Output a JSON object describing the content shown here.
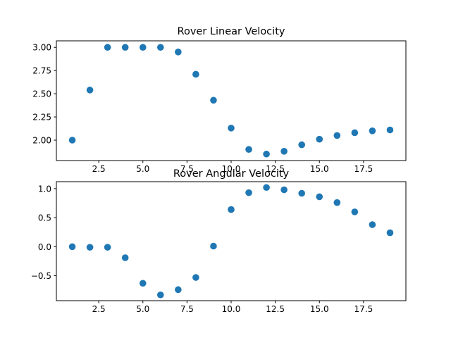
{
  "chart_data": [
    {
      "type": "scatter",
      "title": "Rover Linear Velocity",
      "xlabel": "",
      "ylabel": "",
      "xlim": [
        0.1,
        19.9
      ],
      "ylim": [
        1.78,
        3.07
      ],
      "xticks": [
        2.5,
        5.0,
        7.5,
        10.0,
        12.5,
        15.0,
        17.5
      ],
      "xtick_labels": [
        "2.5",
        "5.0",
        "7.5",
        "10.0",
        "12.5",
        "15.0",
        "17.5"
      ],
      "yticks": [
        2.0,
        2.25,
        2.5,
        2.75,
        3.0
      ],
      "ytick_labels": [
        "2.00",
        "2.25",
        "2.50",
        "2.75",
        "3.00"
      ],
      "grid": false,
      "marker_color": "#1f77b4",
      "series": [
        {
          "x": [
            1,
            2,
            3,
            4,
            5,
            6,
            7,
            8,
            9,
            10,
            11,
            12,
            13,
            14,
            15,
            16,
            17,
            18,
            19
          ],
          "y": [
            2.0,
            2.54,
            3.0,
            3.0,
            3.0,
            3.0,
            2.95,
            2.71,
            2.43,
            2.13,
            1.9,
            1.85,
            1.88,
            1.95,
            2.01,
            2.05,
            2.08,
            2.1,
            2.11
          ]
        }
      ]
    },
    {
      "type": "scatter",
      "title": "Rover Angular Velocity",
      "xlabel": "",
      "ylabel": "",
      "xlim": [
        0.1,
        19.9
      ],
      "ylim": [
        -0.93,
        1.12
      ],
      "xticks": [
        2.5,
        5.0,
        7.5,
        10.0,
        12.5,
        15.0,
        17.5
      ],
      "xtick_labels": [
        "2.5",
        "5.0",
        "7.5",
        "10.0",
        "12.5",
        "15.0",
        "17.5"
      ],
      "yticks": [
        -0.5,
        0.0,
        0.5,
        1.0
      ],
      "ytick_labels": [
        "−0.5",
        "0.0",
        "0.5",
        "1.0"
      ],
      "grid": false,
      "marker_color": "#1f77b4",
      "series": [
        {
          "x": [
            1,
            2,
            3,
            4,
            5,
            6,
            7,
            8,
            9,
            10,
            11,
            12,
            13,
            14,
            15,
            16,
            17,
            18,
            19
          ],
          "y": [
            0.0,
            -0.01,
            -0.01,
            -0.19,
            -0.63,
            -0.83,
            -0.74,
            -0.53,
            0.01,
            0.64,
            0.93,
            1.02,
            0.98,
            0.92,
            0.86,
            0.76,
            0.6,
            0.38,
            0.24
          ]
        }
      ]
    }
  ]
}
